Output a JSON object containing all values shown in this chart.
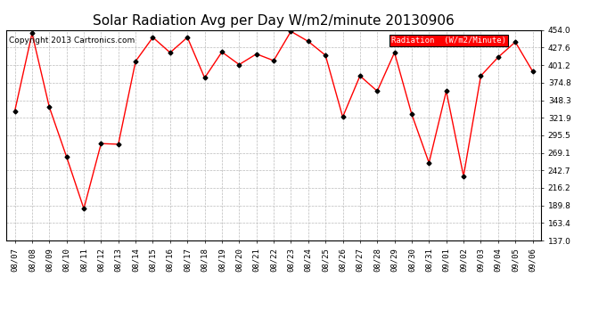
{
  "title": "Solar Radiation Avg per Day W/m2/minute 20130906",
  "copyright": "Copyright 2013 Cartronics.com",
  "legend_label": "Radiation  (W/m2/Minute)",
  "dates": [
    "08/07",
    "08/08",
    "08/09",
    "08/10",
    "08/11",
    "08/12",
    "08/13",
    "08/14",
    "08/15",
    "08/16",
    "08/17",
    "08/18",
    "08/19",
    "08/20",
    "08/21",
    "08/22",
    "08/23",
    "08/24",
    "08/25",
    "08/26",
    "08/27",
    "08/28",
    "08/29",
    "08/30",
    "08/31",
    "09/01",
    "09/02",
    "09/03",
    "09/04",
    "09/05",
    "09/06"
  ],
  "values": [
    332,
    449,
    338,
    263,
    185,
    283,
    282,
    407,
    443,
    420,
    443,
    382,
    421,
    402,
    418,
    408,
    452,
    437,
    416,
    323,
    385,
    362,
    420,
    327,
    254,
    362,
    234,
    385,
    413,
    436,
    392
  ],
  "ylim": [
    137.0,
    454.0
  ],
  "yticks": [
    137.0,
    163.4,
    189.8,
    216.2,
    242.7,
    269.1,
    295.5,
    321.9,
    348.3,
    374.8,
    401.2,
    427.6,
    454.0
  ],
  "line_color": "red",
  "marker_color": "black",
  "bg_color": "white",
  "grid_color": "#bbbbbb",
  "legend_bg": "red",
  "legend_text_color": "white",
  "title_fontsize": 11,
  "tick_fontsize": 6.5,
  "copyright_fontsize": 6.5,
  "legend_fontsize": 6.5
}
